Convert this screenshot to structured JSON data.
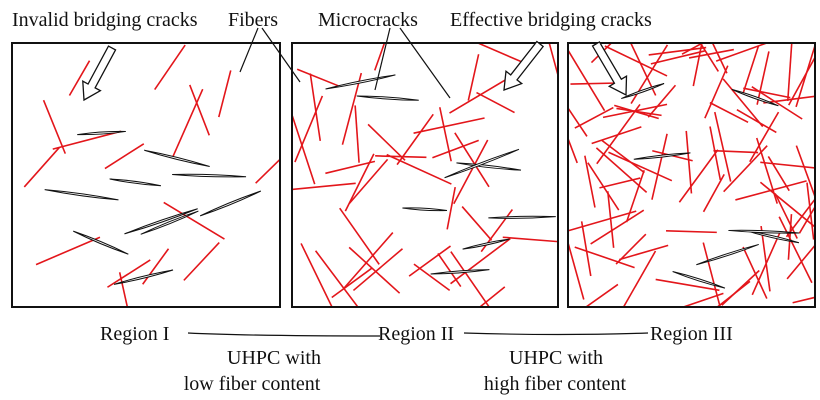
{
  "labels": {
    "invalid": "Invalid bridging cracks",
    "fibers": "Fibers",
    "microcracks": "Microcracks",
    "effective": "Effective bridging cracks"
  },
  "regions": [
    "Region I",
    "Region II",
    "Region III"
  ],
  "groups": [
    {
      "line1": "UHPC with",
      "line2": "low fiber content"
    },
    {
      "line1": "UHPC with",
      "line2": "high fiber content"
    }
  ]
}
